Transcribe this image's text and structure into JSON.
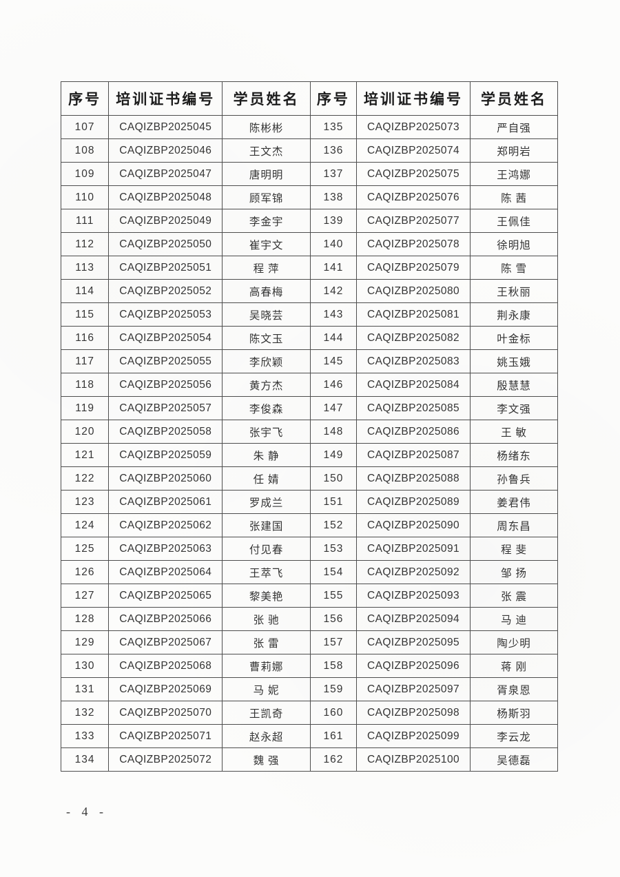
{
  "page": {
    "page_number": "- 4 -"
  },
  "table": {
    "headers": [
      "序号",
      "培训证书编号",
      "学员姓名",
      "序号",
      "培训证书编号",
      "学员姓名"
    ],
    "rows": [
      [
        "107",
        "CAQIZBP2025045",
        "陈彬彬",
        "135",
        "CAQIZBP2025073",
        "严自强"
      ],
      [
        "108",
        "CAQIZBP2025046",
        "王文杰",
        "136",
        "CAQIZBP2025074",
        "郑明岩"
      ],
      [
        "109",
        "CAQIZBP2025047",
        "唐明明",
        "137",
        "CAQIZBP2025075",
        "王鸿娜"
      ],
      [
        "110",
        "CAQIZBP2025048",
        "顾军锦",
        "138",
        "CAQIZBP2025076",
        "陈 茜"
      ],
      [
        "111",
        "CAQIZBP2025049",
        "李金宇",
        "139",
        "CAQIZBP2025077",
        "王佩佳"
      ],
      [
        "112",
        "CAQIZBP2025050",
        "崔宇文",
        "140",
        "CAQIZBP2025078",
        "徐明旭"
      ],
      [
        "113",
        "CAQIZBP2025051",
        "程 萍",
        "141",
        "CAQIZBP2025079",
        "陈 雪"
      ],
      [
        "114",
        "CAQIZBP2025052",
        "高春梅",
        "142",
        "CAQIZBP2025080",
        "王秋丽"
      ],
      [
        "115",
        "CAQIZBP2025053",
        "吴晓芸",
        "143",
        "CAQIZBP2025081",
        "荆永康"
      ],
      [
        "116",
        "CAQIZBP2025054",
        "陈文玉",
        "144",
        "CAQIZBP2025082",
        "叶金标"
      ],
      [
        "117",
        "CAQIZBP2025055",
        "李欣颖",
        "145",
        "CAQIZBP2025083",
        "姚玉娥"
      ],
      [
        "118",
        "CAQIZBP2025056",
        "黄方杰",
        "146",
        "CAQIZBP2025084",
        "殷慧慧"
      ],
      [
        "119",
        "CAQIZBP2025057",
        "李俊森",
        "147",
        "CAQIZBP2025085",
        "李文强"
      ],
      [
        "120",
        "CAQIZBP2025058",
        "张宇飞",
        "148",
        "CAQIZBP2025086",
        "王 敏"
      ],
      [
        "121",
        "CAQIZBP2025059",
        "朱 静",
        "149",
        "CAQIZBP2025087",
        "杨绪东"
      ],
      [
        "122",
        "CAQIZBP2025060",
        "任 婧",
        "150",
        "CAQIZBP2025088",
        "孙鲁兵"
      ],
      [
        "123",
        "CAQIZBP2025061",
        "罗成兰",
        "151",
        "CAQIZBP2025089",
        "姜君伟"
      ],
      [
        "124",
        "CAQIZBP2025062",
        "张建国",
        "152",
        "CAQIZBP2025090",
        "周东昌"
      ],
      [
        "125",
        "CAQIZBP2025063",
        "付见春",
        "153",
        "CAQIZBP2025091",
        "程 斐"
      ],
      [
        "126",
        "CAQIZBP2025064",
        "王萃飞",
        "154",
        "CAQIZBP2025092",
        "邹 扬"
      ],
      [
        "127",
        "CAQIZBP2025065",
        "黎美艳",
        "155",
        "CAQIZBP2025093",
        "张 震"
      ],
      [
        "128",
        "CAQIZBP2025066",
        "张 驰",
        "156",
        "CAQIZBP2025094",
        "马 迪"
      ],
      [
        "129",
        "CAQIZBP2025067",
        "张 雷",
        "157",
        "CAQIZBP2025095",
        "陶少明"
      ],
      [
        "130",
        "CAQIZBP2025068",
        "曹莉娜",
        "158",
        "CAQIZBP2025096",
        "蒋 刚"
      ],
      [
        "131",
        "CAQIZBP2025069",
        "马 妮",
        "159",
        "CAQIZBP2025097",
        "胥泉恩"
      ],
      [
        "132",
        "CAQIZBP2025070",
        "王凯奇",
        "160",
        "CAQIZBP2025098",
        "杨斯羽"
      ],
      [
        "133",
        "CAQIZBP2025071",
        "赵永超",
        "161",
        "CAQIZBP2025099",
        "李云龙"
      ],
      [
        "134",
        "CAQIZBP2025072",
        "魏 强",
        "162",
        "CAQIZBP2025100",
        "吴德磊"
      ]
    ]
  }
}
